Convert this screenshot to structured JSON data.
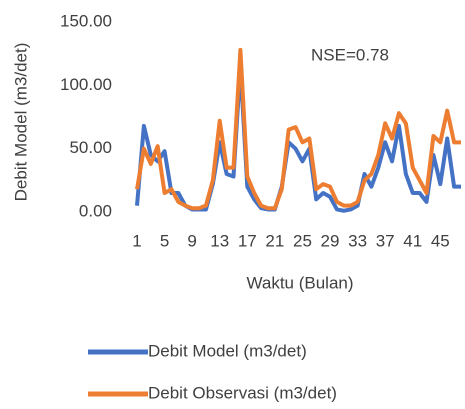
{
  "chart_data": {
    "type": "line",
    "ylabel": "Debit Model (m3/det)",
    "xlabel": "Waktu (Bulan)",
    "annotation": "NSE=0.78",
    "categories": [
      1,
      null,
      null,
      null,
      5,
      null,
      null,
      null,
      9,
      null,
      null,
      null,
      13,
      null,
      null,
      null,
      17,
      null,
      null,
      null,
      21,
      null,
      null,
      null,
      25,
      null,
      null,
      null,
      29,
      null,
      null,
      null,
      33,
      null,
      null,
      null,
      37,
      null,
      null,
      null,
      41,
      null,
      null,
      null,
      45,
      null,
      null,
      null
    ],
    "series": [
      {
        "name": "Debit Model (m3/det)",
        "color": "#4472c4",
        "values": [
          5,
          68,
          45,
          40,
          48,
          15,
          15,
          5,
          2,
          2,
          2,
          22,
          55,
          30,
          28,
          115,
          20,
          10,
          3,
          2,
          2,
          20,
          55,
          50,
          40,
          50,
          10,
          15,
          12,
          2,
          1,
          2,
          5,
          30,
          20,
          35,
          55,
          40,
          68,
          30,
          15,
          15,
          8,
          45,
          22,
          58,
          20,
          20
        ]
      },
      {
        "name": "Debit Observasi (m3/det)",
        "color": "#ed7d31",
        "values": [
          18,
          50,
          38,
          52,
          15,
          18,
          8,
          5,
          3,
          3,
          5,
          25,
          72,
          35,
          35,
          128,
          28,
          15,
          5,
          3,
          3,
          18,
          65,
          67,
          55,
          58,
          18,
          22,
          20,
          8,
          5,
          5,
          8,
          25,
          30,
          45,
          70,
          58,
          78,
          70,
          35,
          25,
          15,
          60,
          55,
          80,
          55,
          55
        ]
      }
    ],
    "ylim": [
      0,
      150
    ],
    "yticks": [
      {
        "value": 0,
        "label": "0.00"
      },
      {
        "value": 50,
        "label": "50.00"
      },
      {
        "value": 100,
        "label": "100.00"
      },
      {
        "value": 150,
        "label": "150.00"
      }
    ]
  }
}
